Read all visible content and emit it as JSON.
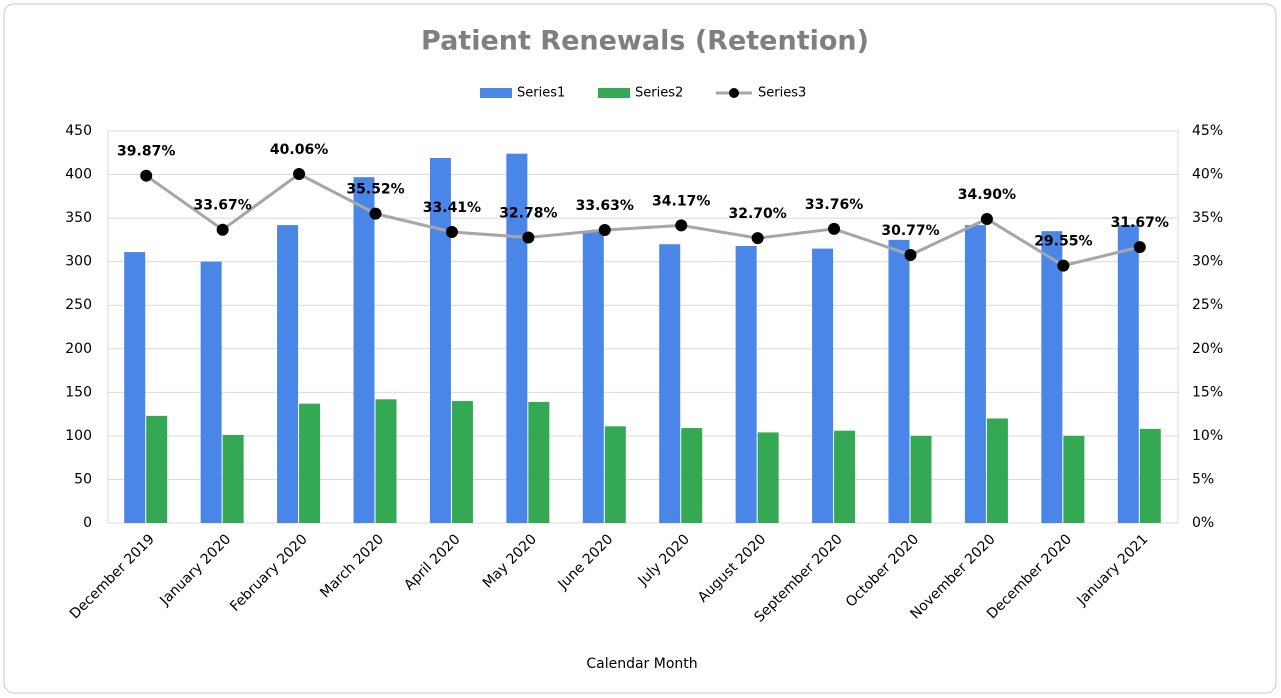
{
  "chart_data": {
    "type": "bar",
    "title": "Patient Renewals (Retention)",
    "x_label": "Calendar Month",
    "categories": [
      "December 2019",
      "January 2020",
      "February 2020",
      "March 2020",
      "April 2020",
      "May 2020",
      "June 2020",
      "July 2020",
      "August 2020",
      "September 2020",
      "October 2020",
      "November 2020",
      "December 2020",
      "January 2021"
    ],
    "series": [
      {
        "name": "Series1",
        "color": "#4a86e8",
        "type": "bar",
        "values": [
          311,
          300,
          342,
          397,
          419,
          424,
          335,
          320,
          318,
          315,
          325,
          342,
          335,
          342
        ]
      },
      {
        "name": "Series2",
        "color": "#34a853",
        "type": "bar",
        "values": [
          123,
          101,
          137,
          142,
          140,
          139,
          111,
          109,
          104,
          106,
          100,
          120,
          100,
          108
        ]
      },
      {
        "name": "Series3",
        "color": "#a6a6a6",
        "marker_color": "#000000",
        "type": "line",
        "axis": "y2",
        "values": [
          39.87,
          33.67,
          40.06,
          35.52,
          33.41,
          32.78,
          33.63,
          34.17,
          32.7,
          33.76,
          30.77,
          34.9,
          29.55,
          31.67
        ],
        "value_labels": [
          "39.87%",
          "33.67%",
          "40.06%",
          "35.52%",
          "33.41%",
          "32.78%",
          "33.63%",
          "34.17%",
          "32.70%",
          "33.76%",
          "30.77%",
          "34.90%",
          "29.55%",
          "31.67%"
        ]
      }
    ],
    "ylim": [
      0,
      450
    ],
    "yticks": [
      0,
      50,
      100,
      150,
      200,
      250,
      300,
      350,
      400,
      450
    ],
    "y2lim": [
      0,
      45
    ],
    "y2ticks": [
      {
        "value": 0,
        "label": "0%"
      },
      {
        "value": 5,
        "label": "5%"
      },
      {
        "value": 10,
        "label": "10%"
      },
      {
        "value": 15,
        "label": "15%"
      },
      {
        "value": 20,
        "label": "20%"
      },
      {
        "value": 25,
        "label": "25%"
      },
      {
        "value": 30,
        "label": "30%"
      },
      {
        "value": 35,
        "label": "35%"
      },
      {
        "value": 40,
        "label": "40%"
      },
      {
        "value": 45,
        "label": "45%"
      }
    ],
    "grid": true,
    "legend": "top"
  }
}
